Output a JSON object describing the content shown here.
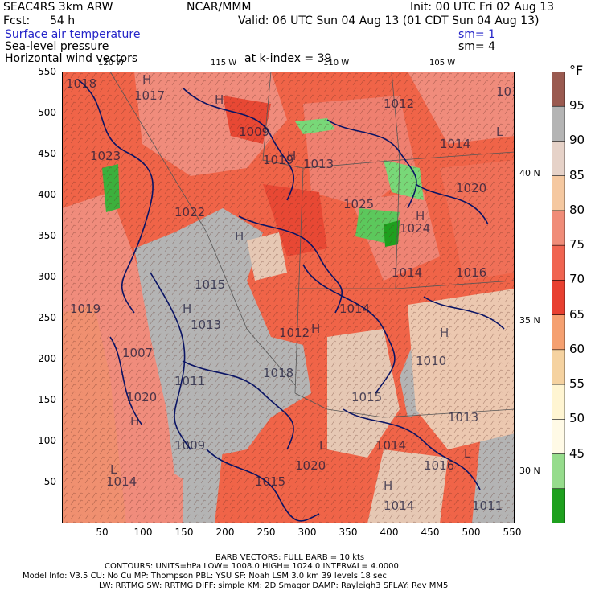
{
  "header": {
    "line1_left": "SEAC4RS  3km ARW",
    "line1_center": "NCAR/MMM",
    "line1_right": "Init: 00 UTC Fri 02 Aug 13",
    "fcst_label": "Fcst:",
    "fcst_value": "54 h",
    "valid": "Valid: 06 UTC Sun 04 Aug 13 (01 CDT Sun 04 Aug 13)"
  },
  "fields": {
    "temperature": "Surface air temperature",
    "sm1": "sm= 1",
    "pressure": "Sea-level pressure",
    "sm4": "sm= 4",
    "wind": "Horizontal wind vectors",
    "kindex": "at k-index = 39"
  },
  "map": {
    "y_ticks": [
      "550",
      "500",
      "450",
      "400",
      "350",
      "300",
      "250",
      "200",
      "150",
      "100",
      "50"
    ],
    "x_ticks": [
      "50",
      "100",
      "150",
      "200",
      "250",
      "300",
      "350",
      "400",
      "450",
      "500",
      "550"
    ],
    "top_lon_labels": [
      "120 W",
      "115 W",
      "110 W",
      "105 W"
    ],
    "right_lat_labels": [
      "40 N",
      "35 N",
      "30 N"
    ],
    "isobar_labels": [
      "1018",
      "1017",
      "1012",
      "1016",
      "1023",
      "1009",
      "1019",
      "1013",
      "1014",
      "1020",
      "1022",
      "1025",
      "1024",
      "1014",
      "1016",
      "1015",
      "1019",
      "1014",
      "1013",
      "1012",
      "1007",
      "1011",
      "1010",
      "1020",
      "1015",
      "1018",
      "1013",
      "1009",
      "1014",
      "1016",
      "1014",
      "1020",
      "1015",
      "1014",
      "1011"
    ],
    "high_marker": "H",
    "low_marker": "L",
    "colors": {
      "green_dark": "#1ea01e",
      "green_light": "#78d878",
      "gray": "#b4b4b4",
      "tan": "#e6c8b4",
      "peach": "#f0b48c",
      "salmon": "#f08c7c",
      "red": "#e84834",
      "orange_red": "#f06448",
      "isobar": "#0a1464"
    }
  },
  "legend": {
    "unit": "°F",
    "labels": [
      "95",
      "90",
      "85",
      "80",
      "75",
      "70",
      "65",
      "60",
      "55",
      "50",
      "45"
    ],
    "colors": [
      "#9a5a50",
      "#b4b4b4",
      "#e6d2c8",
      "#f5c8a0",
      "#f08c78",
      "#f06450",
      "#e84030",
      "#f5a070",
      "#f5d2a0",
      "#fff5d2",
      "#fffae6",
      "#96dc8c",
      "#1ea01e"
    ]
  },
  "footer": {
    "barb": "BARB VECTORS:  FULL BARB = 10 kts",
    "contours": "CONTOURS:  UNITS=hPa  LOW=   1008.0     HIGH=  1024.0     INTERVAL=    4.0000",
    "model1": "Model Info: V3.5      CU: No Cu     MP: Thompson    PBL: YSU     SF: Noah LSM    3.0 km   39 levels   18 sec",
    "model2": "LW: RRTMG    SW: RRTMG   DIFF: simple KM: 2D Smagor DAMP: Rayleigh3  SFLAY: Rev MM5"
  }
}
